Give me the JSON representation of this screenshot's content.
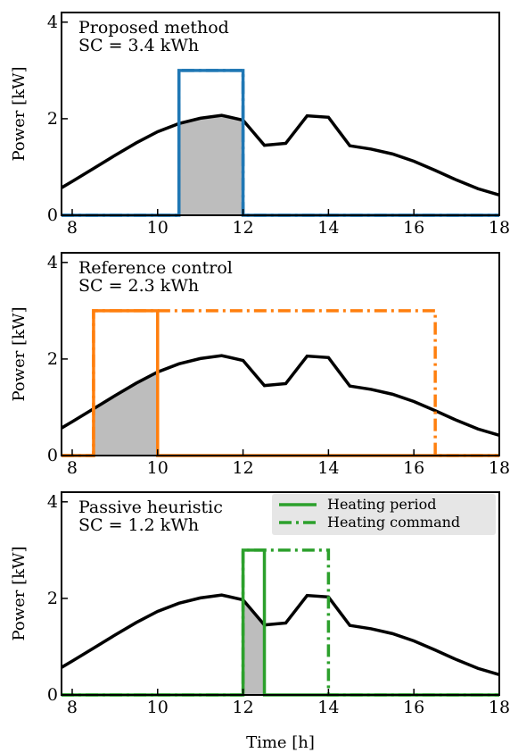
{
  "chart_data": [
    {
      "type": "line",
      "annotation_title": "Proposed method",
      "annotation_sc": "SC = 3.4 kWh",
      "ylabel": "Power [kW]",
      "xlabel": "",
      "xlim": [
        7.75,
        18
      ],
      "ylim": [
        0,
        4.2
      ],
      "xticks": [
        8,
        10,
        12,
        14,
        16,
        18
      ],
      "yticks": [
        0,
        2,
        4
      ],
      "pv": {
        "x": [
          7.75,
          8,
          8.5,
          9,
          9.5,
          10,
          10.5,
          11,
          11.5,
          12,
          12.5,
          13,
          13.5,
          14,
          14.5,
          15,
          15.5,
          16,
          16.5,
          17,
          17.5,
          18
        ],
        "y": [
          0.57,
          0.7,
          0.97,
          1.24,
          1.5,
          1.73,
          1.9,
          2.01,
          2.07,
          1.97,
          1.45,
          1.49,
          2.06,
          2.03,
          1.44,
          1.37,
          1.27,
          1.12,
          0.93,
          0.73,
          0.55,
          0.42
        ]
      },
      "heating_period": [
        10.5,
        12
      ],
      "heating_command": [
        10.5,
        12
      ],
      "power_level": 3,
      "color": "#1f77b4"
    },
    {
      "type": "line",
      "annotation_title": "Reference control",
      "annotation_sc": "SC = 2.3 kWh",
      "ylabel": "Power [kW]",
      "xlabel": "",
      "xlim": [
        7.75,
        18
      ],
      "ylim": [
        0,
        4.2
      ],
      "xticks": [
        8,
        10,
        12,
        14,
        16,
        18
      ],
      "yticks": [
        0,
        2,
        4
      ],
      "pv": {
        "x": [
          7.75,
          8,
          8.5,
          9,
          9.5,
          10,
          10.5,
          11,
          11.5,
          12,
          12.5,
          13,
          13.5,
          14,
          14.5,
          15,
          15.5,
          16,
          16.5,
          17,
          17.5,
          18
        ],
        "y": [
          0.57,
          0.7,
          0.97,
          1.24,
          1.5,
          1.73,
          1.9,
          2.01,
          2.07,
          1.97,
          1.45,
          1.49,
          2.06,
          2.03,
          1.44,
          1.37,
          1.27,
          1.12,
          0.93,
          0.73,
          0.55,
          0.42
        ]
      },
      "heating_period": [
        8.5,
        10
      ],
      "heating_command": [
        8.5,
        16.5
      ],
      "power_level": 3,
      "color": "#ff7f0e"
    },
    {
      "type": "line",
      "annotation_title": "Passive heuristic",
      "annotation_sc": "SC = 1.2 kWh",
      "ylabel": "Power [kW]",
      "xlabel": "Time [h]",
      "xlim": [
        7.75,
        18
      ],
      "ylim": [
        0,
        4.2
      ],
      "xticks": [
        8,
        10,
        12,
        14,
        16,
        18
      ],
      "yticks": [
        0,
        2,
        4
      ],
      "pv": {
        "x": [
          7.75,
          8,
          8.5,
          9,
          9.5,
          10,
          10.5,
          11,
          11.5,
          12,
          12.5,
          13,
          13.5,
          14,
          14.5,
          15,
          15.5,
          16,
          16.5,
          17,
          17.5,
          18
        ],
        "y": [
          0.57,
          0.7,
          0.97,
          1.24,
          1.5,
          1.73,
          1.9,
          2.01,
          2.07,
          1.97,
          1.45,
          1.49,
          2.06,
          2.03,
          1.44,
          1.37,
          1.27,
          1.12,
          0.93,
          0.73,
          0.55,
          0.42
        ]
      },
      "heating_period": [
        12,
        12.5
      ],
      "heating_command": [
        12,
        14
      ],
      "power_level": 3,
      "color": "#2ca02c",
      "legend": {
        "entries": [
          "Heating period",
          "Heating command"
        ],
        "placement": "top-right"
      }
    }
  ]
}
